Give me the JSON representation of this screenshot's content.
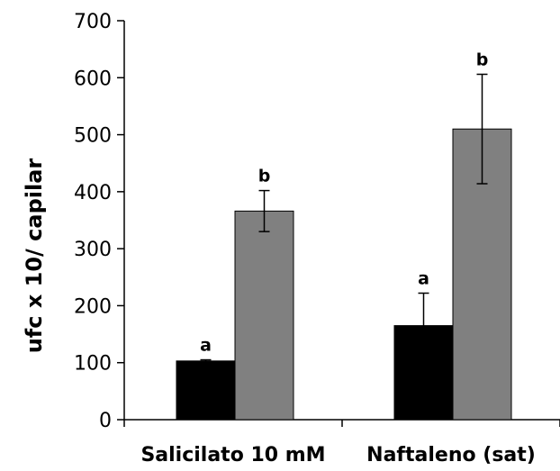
{
  "chart_data": {
    "type": "bar",
    "title": "",
    "xlabel": "",
    "ylabel": "ufc x 10/ capilar",
    "ylim": [
      0,
      700
    ],
    "yticks": [
      0,
      100,
      200,
      300,
      400,
      500,
      600,
      700
    ],
    "categories": [
      "Salicilato 10 mM",
      "Naftaleno (sat)"
    ],
    "grid": false,
    "legend": "none",
    "series": [
      {
        "color": "#000000",
        "values": [
          103,
          165
        ],
        "errors": [
          2,
          57
        ],
        "labels": [
          "a",
          "a"
        ]
      },
      {
        "color": "#808080",
        "values": [
          366,
          510
        ],
        "errors": [
          36,
          96
        ],
        "labels": [
          "b",
          "b"
        ]
      }
    ]
  }
}
